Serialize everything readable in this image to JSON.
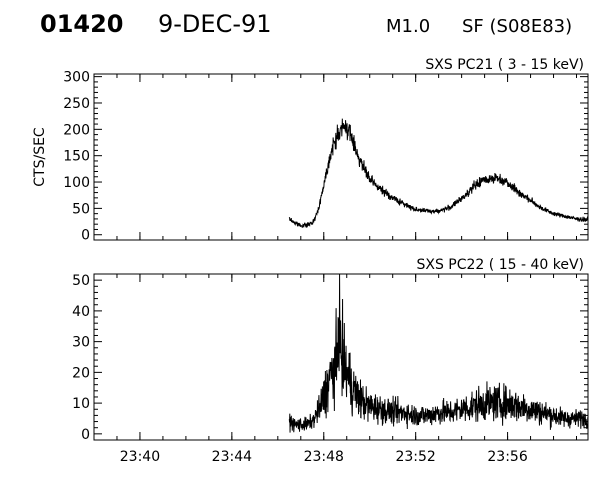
{
  "header": {
    "event_id": "01420",
    "date": "9-DEC-91",
    "goes_class": "M1.0",
    "flare_location": "SF (S08E83)"
  },
  "chart_data": [
    {
      "type": "line",
      "title": "SXS PC21  (  3 - 15 keV)",
      "xlabel": "",
      "ylabel": "CTS/SEC",
      "xlim": [
        "23:38",
        "23:59:30"
      ],
      "ylim": [
        -10,
        305
      ],
      "yticks": [
        0,
        50,
        100,
        150,
        200,
        250,
        300
      ],
      "xticks": [
        "23:40",
        "23:44",
        "23:48",
        "23:52",
        "23:56"
      ],
      "grid": false,
      "series": [
        {
          "x": [
            "23:46:30",
            "23:46:45",
            "23:47:00",
            "23:47:15",
            "23:47:30",
            "23:47:45",
            "23:48:00",
            "23:48:15",
            "23:48:30",
            "23:48:45",
            "23:49:00",
            "23:49:15",
            "23:49:30",
            "23:49:45",
            "23:50:00",
            "23:50:30",
            "23:51:00",
            "23:51:30",
            "23:52:00",
            "23:52:30",
            "23:53:00",
            "23:53:30",
            "23:54:00",
            "23:54:30",
            "23:55:00",
            "23:55:30",
            "23:56:00",
            "23:56:30",
            "23:57:00",
            "23:57:30",
            "23:58:00",
            "23:58:30",
            "23:59:00",
            "23:59:30"
          ],
          "values": [
            30,
            22,
            18,
            18,
            22,
            45,
            95,
            145,
            180,
            200,
            205,
            180,
            150,
            125,
            105,
            85,
            70,
            58,
            48,
            45,
            45,
            52,
            68,
            90,
            105,
            108,
            100,
            80,
            65,
            50,
            40,
            35,
            30,
            28
          ]
        }
      ]
    },
    {
      "type": "line",
      "title": "SXS PC22  ( 15 - 40 keV)",
      "xlabel": "",
      "ylabel": "",
      "xlim": [
        "23:38",
        "23:59:30"
      ],
      "ylim": [
        -2,
        52
      ],
      "yticks": [
        0,
        10,
        20,
        30,
        40,
        50
      ],
      "xticks": [
        "23:40",
        "23:44",
        "23:48",
        "23:52",
        "23:56"
      ],
      "grid": false,
      "series": [
        {
          "x": [
            "23:46:30",
            "23:46:45",
            "23:47:00",
            "23:47:15",
            "23:47:30",
            "23:47:45",
            "23:48:00",
            "23:48:15",
            "23:48:30",
            "23:48:45",
            "23:49:00",
            "23:49:15",
            "23:49:30",
            "23:49:45",
            "23:50:00",
            "23:50:30",
            "23:51:00",
            "23:51:30",
            "23:52:00",
            "23:52:30",
            "23:53:00",
            "23:53:30",
            "23:54:00",
            "23:54:30",
            "23:55:00",
            "23:55:30",
            "23:56:00",
            "23:56:30",
            "23:57:00",
            "23:57:30",
            "23:58:00",
            "23:58:30",
            "23:59:00",
            "23:59:30"
          ],
          "values": [
            4,
            3,
            3,
            3,
            4,
            7,
            12,
            18,
            22,
            25,
            20,
            15,
            12,
            10,
            9,
            8,
            7,
            7,
            6,
            6,
            7,
            7,
            8,
            9,
            10,
            10,
            10,
            9,
            8,
            7,
            6,
            5,
            5,
            5
          ]
        }
      ]
    }
  ]
}
